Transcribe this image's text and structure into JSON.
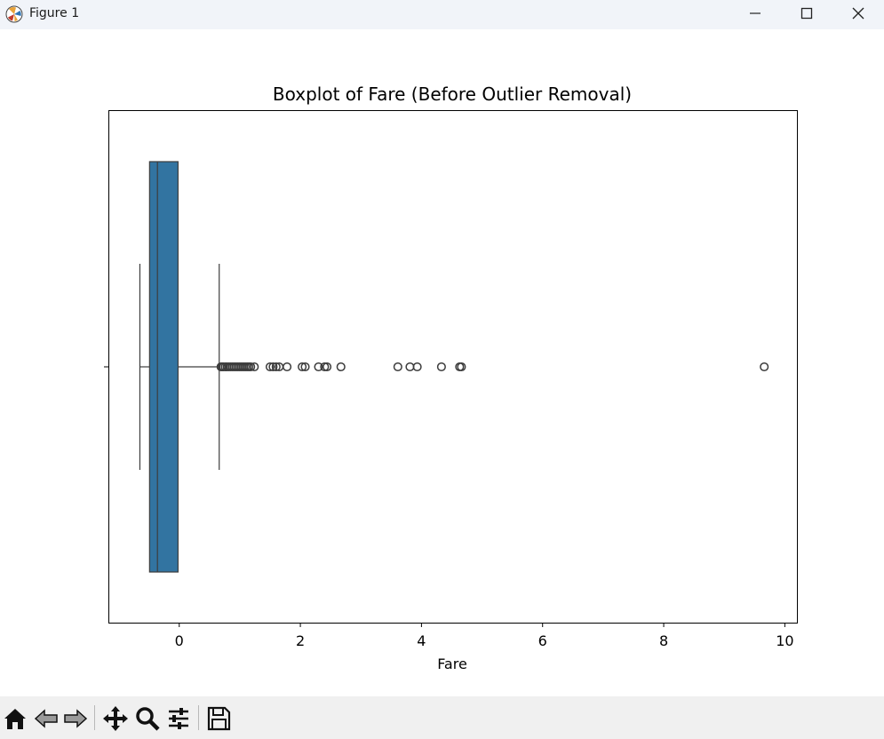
{
  "window": {
    "title": "Figure 1",
    "icon": "matplotlib-icon",
    "controls": [
      "minimize-icon",
      "maximize-icon",
      "close-icon"
    ]
  },
  "toolbar": {
    "buttons": [
      "home-icon",
      "back-icon",
      "forward-icon",
      "pan-icon",
      "zoom-icon",
      "configure-subplots-icon",
      "save-icon"
    ]
  },
  "chart_data": {
    "type": "boxplot",
    "orientation": "horizontal",
    "title": "Boxplot of Fare (Before Outlier Removal)",
    "xlabel": "Fare",
    "ylabel": "",
    "xlim": [
      -1.17,
      10.2
    ],
    "xticks": [
      0,
      2,
      4,
      6,
      8,
      10
    ],
    "xtick_labels": [
      "0",
      "2",
      "4",
      "6",
      "8",
      "10"
    ],
    "grid": false,
    "box": {
      "whisker_low": -0.65,
      "q1": -0.49,
      "median": -0.36,
      "q3": -0.02,
      "whisker_high": 0.66,
      "color": "#3274a1",
      "edge_color": "#3d3d3d"
    },
    "outliers": [
      0.69,
      0.71,
      0.73,
      0.76,
      0.79,
      0.82,
      0.85,
      0.88,
      0.91,
      0.94,
      0.97,
      1.0,
      1.03,
      1.06,
      1.09,
      1.12,
      1.15,
      1.18,
      1.24,
      1.5,
      1.55,
      1.6,
      1.65,
      1.78,
      2.03,
      2.08,
      2.3,
      2.4,
      2.44,
      2.67,
      3.61,
      3.81,
      3.93,
      4.33,
      4.63,
      4.66,
      9.66
    ]
  }
}
